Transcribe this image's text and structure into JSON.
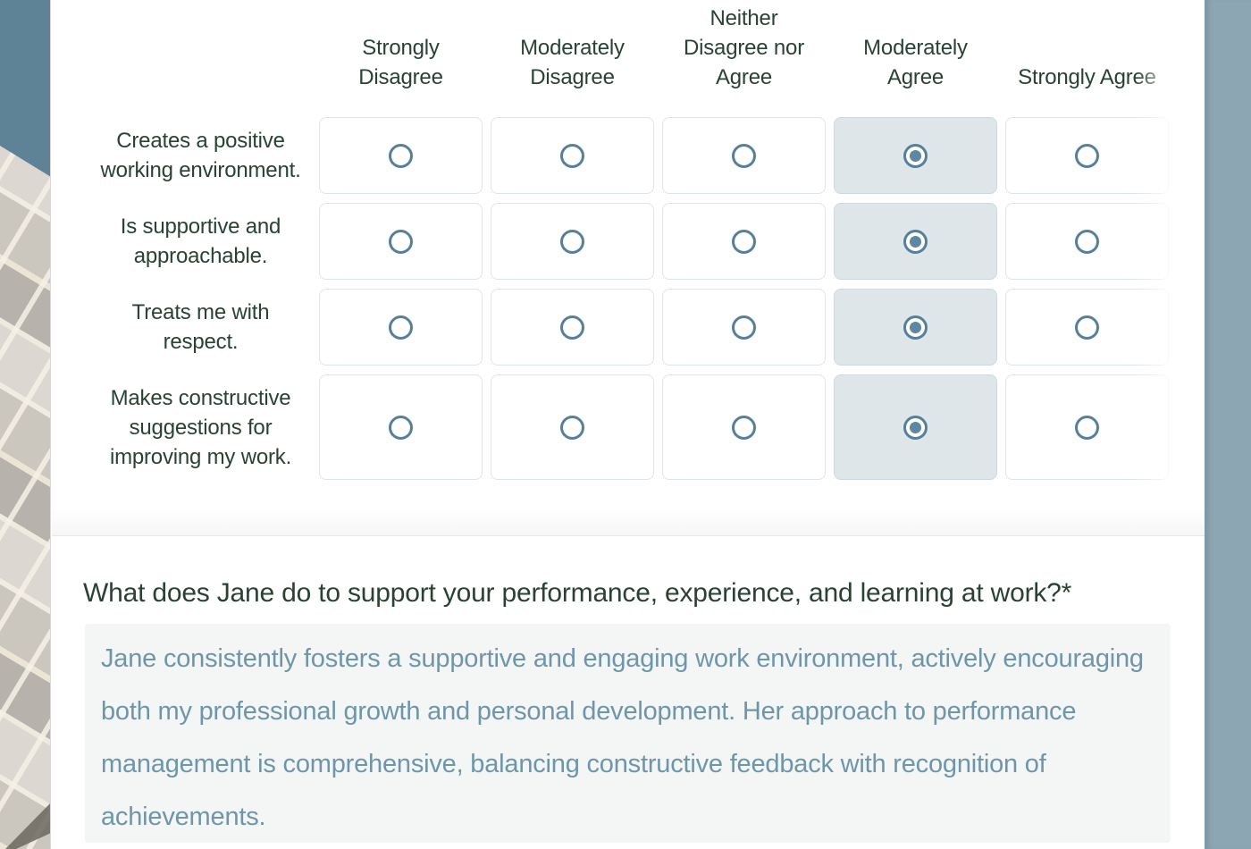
{
  "matrix": {
    "columns": [
      "Strongly Disagree",
      "Moderately Disagree",
      "Neither Disagree nor Agree",
      "Moderately Agree",
      "Strongly Agree"
    ],
    "rows": [
      {
        "label": "Creates a positive working environment.",
        "selected": "Moderately Agree"
      },
      {
        "label": "Is supportive and approachable.",
        "selected": "Moderately Agree"
      },
      {
        "label": "Treats me with respect.",
        "selected": "Moderately Agree"
      },
      {
        "label": "Makes constructive suggestions for improving my work.",
        "selected": "Moderately Agree"
      }
    ]
  },
  "open_question": {
    "label": "What does Jane do to support your performance, experience, and learning at work?",
    "required_marker": "*",
    "answer": "Jane consistently fosters a supportive and engaging work environment, actively encouraging both my professional growth and personal development. Her approach to performance management is comprehensive, balancing constructive feedback with recognition of achievements."
  },
  "colors": {
    "accent-green": "#294234",
    "radio-blue": "#54809B",
    "selected-bg": "#DFE6EA",
    "selected-border": "#CBD8DE",
    "cell-border": "#DDE5EA",
    "answer-text": "#6E96AB",
    "answer-bg": "#F4F5F5",
    "sky": "#5E8296",
    "right-strip": "#8CA6B3"
  }
}
